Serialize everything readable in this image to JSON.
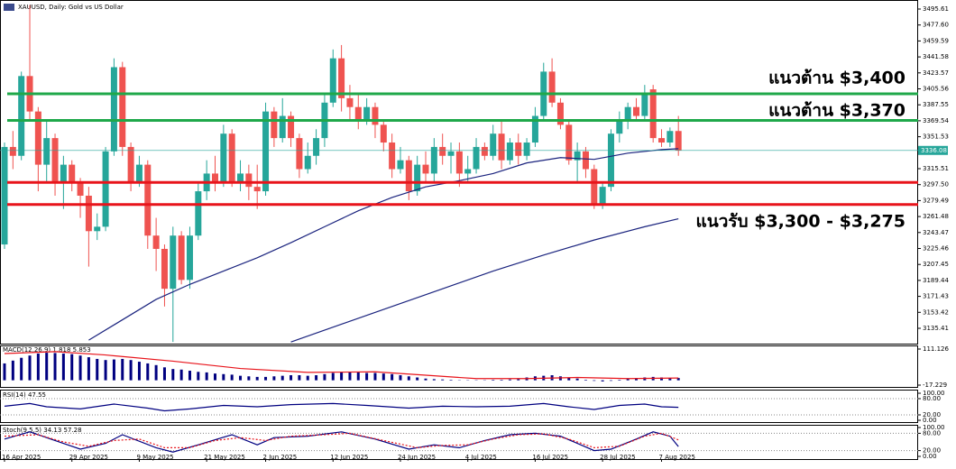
{
  "chart_data": {
    "type": "candlestick",
    "title": "XAUUSD, Daily: Gold vs US Dollar",
    "ylim": [
      3118.1,
      3505.8
    ],
    "yticks": [
      3495.61,
      {
        "value": 3477.6,
        "label": "3477.60"
      },
      3459.59,
      3441.58,
      3423.57,
      3405.56,
      3387.55,
      3369.54,
      3351.53,
      3315.51,
      {
        "value": 3297.5,
        "label": "3297.50"
      },
      3279.49,
      3261.48,
      3243.47,
      3225.46,
      3207.45,
      3189.44,
      3171.43,
      3153.42,
      3135.41
    ],
    "xticks": [
      {
        "value": 0,
        "label": "16 Apr 2025"
      },
      {
        "value": 8,
        "label": "29 Apr 2025"
      },
      {
        "value": 16,
        "label": "9 May 2025"
      },
      {
        "value": 24,
        "label": "21 May 2025"
      },
      {
        "value": 31,
        "label": "2 Jun 2025"
      },
      {
        "value": 39,
        "label": "12 Jun 2025"
      },
      {
        "value": 47,
        "label": "24 Jun 2025"
      },
      {
        "value": 55,
        "label": "4 Jul 2025"
      },
      {
        "value": 63,
        "label": "16 Jul 2025"
      },
      {
        "value": 71,
        "label": "28 Jul 2025"
      },
      {
        "value": 78,
        "label": "7 Aug 2025"
      }
    ],
    "up_color": "#26a69a",
    "down_color": "#ef5350",
    "candles": [
      [
        3230,
        3345,
        3225,
        3340
      ],
      [
        3340,
        3358,
        3315,
        3330
      ],
      [
        3330,
        3425,
        3325,
        3420
      ],
      [
        3420,
        3500,
        3370,
        3380
      ],
      [
        3380,
        3385,
        3290,
        3320
      ],
      [
        3320,
        3370,
        3300,
        3350
      ],
      [
        3350,
        3355,
        3285,
        3300
      ],
      [
        3300,
        3330,
        3270,
        3320
      ],
      [
        3320,
        3325,
        3290,
        3300
      ],
      [
        3300,
        3305,
        3260,
        3285
      ],
      [
        3285,
        3295,
        3205,
        3245
      ],
      [
        3245,
        3265,
        3235,
        3250
      ],
      [
        3250,
        3340,
        3245,
        3335
      ],
      [
        3335,
        3440,
        3330,
        3430
      ],
      [
        3430,
        3436,
        3330,
        3340
      ],
      [
        3340,
        3345,
        3290,
        3300
      ],
      [
        3300,
        3330,
        3295,
        3320
      ],
      [
        3320,
        3325,
        3225,
        3240
      ],
      [
        3240,
        3260,
        3200,
        3225
      ],
      [
        3225,
        3230,
        3160,
        3180
      ],
      [
        3180,
        3250,
        3120,
        3240
      ],
      [
        3240,
        3245,
        3185,
        3190
      ],
      [
        3190,
        3250,
        3180,
        3240
      ],
      [
        3240,
        3300,
        3235,
        3290
      ],
      [
        3290,
        3325,
        3280,
        3310
      ],
      [
        3310,
        3330,
        3290,
        3300
      ],
      [
        3300,
        3365,
        3295,
        3355
      ],
      [
        3355,
        3360,
        3295,
        3300
      ],
      [
        3300,
        3325,
        3290,
        3310
      ],
      [
        3310,
        3320,
        3280,
        3295
      ],
      [
        3295,
        3320,
        3270,
        3290
      ],
      [
        3290,
        3390,
        3285,
        3380
      ],
      [
        3380,
        3385,
        3340,
        3350
      ],
      [
        3350,
        3395,
        3345,
        3375
      ],
      [
        3375,
        3380,
        3340,
        3350
      ],
      [
        3350,
        3355,
        3305,
        3315
      ],
      [
        3315,
        3345,
        3310,
        3330
      ],
      [
        3330,
        3360,
        3320,
        3350
      ],
      [
        3350,
        3400,
        3340,
        3390
      ],
      [
        3390,
        3450,
        3385,
        3440
      ],
      [
        3440,
        3455,
        3380,
        3395
      ],
      [
        3395,
        3410,
        3370,
        3385
      ],
      [
        3385,
        3400,
        3360,
        3370
      ],
      [
        3370,
        3395,
        3365,
        3385
      ],
      [
        3385,
        3390,
        3350,
        3365
      ],
      [
        3365,
        3370,
        3335,
        3345
      ],
      [
        3345,
        3355,
        3305,
        3315
      ],
      [
        3315,
        3340,
        3310,
        3325
      ],
      [
        3325,
        3330,
        3280,
        3290
      ],
      [
        3290,
        3330,
        3285,
        3320
      ],
      [
        3320,
        3335,
        3300,
        3310
      ],
      [
        3310,
        3350,
        3300,
        3340
      ],
      [
        3340,
        3355,
        3320,
        3330
      ],
      [
        3330,
        3345,
        3310,
        3335
      ],
      [
        3335,
        3345,
        3295,
        3310
      ],
      [
        3310,
        3330,
        3300,
        3315
      ],
      [
        3315,
        3350,
        3310,
        3340
      ],
      [
        3340,
        3345,
        3325,
        3330
      ],
      [
        3330,
        3365,
        3325,
        3355
      ],
      [
        3355,
        3370,
        3315,
        3325
      ],
      [
        3325,
        3350,
        3320,
        3345
      ],
      [
        3345,
        3355,
        3320,
        3330
      ],
      [
        3330,
        3350,
        3325,
        3345
      ],
      [
        3345,
        3385,
        3340,
        3375
      ],
      [
        3375,
        3435,
        3370,
        3425
      ],
      [
        3425,
        3440,
        3385,
        3390
      ],
      [
        3390,
        3395,
        3360,
        3365
      ],
      [
        3365,
        3370,
        3320,
        3325
      ],
      [
        3325,
        3345,
        3300,
        3335
      ],
      [
        3335,
        3340,
        3305,
        3315
      ],
      [
        3315,
        3320,
        3270,
        3275
      ],
      [
        3275,
        3300,
        3270,
        3295
      ],
      [
        3295,
        3360,
        3290,
        3355
      ],
      [
        3355,
        3380,
        3345,
        3370
      ],
      [
        3370,
        3390,
        3360,
        3385
      ],
      [
        3385,
        3395,
        3370,
        3375
      ],
      [
        3375,
        3410,
        3370,
        3400
      ],
      [
        3405,
        3410,
        3345,
        3350
      ],
      [
        3350,
        3360,
        3340,
        3345
      ],
      [
        3345,
        3362,
        3340,
        3358
      ],
      [
        3358,
        3375,
        3330,
        3336.08
      ]
    ],
    "last_price": 3336.08,
    "last_color": "#26a69a",
    "ma_color": "#1a237e",
    "ma": [
      {
        "x": [
          10,
          14,
          18,
          22,
          26,
          30,
          34,
          38,
          42,
          46,
          50,
          54,
          58,
          62,
          66,
          70,
          74,
          78,
          80
        ],
        "values": [
          3122,
          3145,
          3168,
          3185,
          3200,
          3215,
          3232,
          3250,
          3268,
          3283,
          3295,
          3302,
          3310,
          3322,
          3328,
          3326,
          3333,
          3337,
          3338
        ]
      },
      {
        "x": [
          34,
          40,
          46,
          52,
          58,
          64,
          70,
          76,
          80
        ],
        "values": [
          3120,
          3140,
          3160,
          3180,
          3200,
          3218,
          3235,
          3250,
          3259
        ]
      }
    ],
    "levels": [
      {
        "value": 3400,
        "color": "#1fa84a"
      },
      {
        "value": 3370,
        "color": "#1fa84a"
      },
      {
        "value": 3300,
        "color": "#e8141b"
      },
      {
        "value": 3275,
        "color": "#e8141b"
      }
    ],
    "annotations": [
      "แนวต้าน $3,400",
      "แนวต้าน $3,370",
      "แนวรับ $3,300 - $3,275"
    ],
    "macd": {
      "label": "MACD(12,26,9) 1.818 5.853",
      "ylim": [
        -17.229,
        111.126
      ],
      "yticks": [
        111.126,
        -17.229
      ],
      "color": "#000080",
      "signal_color": "#e8141b",
      "histogram": [
        60,
        70,
        80,
        88,
        95,
        98,
        97,
        95,
        93,
        88,
        82,
        76,
        72,
        74,
        76,
        72,
        66,
        60,
        54,
        46,
        40,
        38,
        34,
        30,
        28,
        24,
        22,
        20,
        16,
        14,
        12,
        12,
        14,
        16,
        18,
        18,
        16,
        18,
        22,
        26,
        28,
        28,
        28,
        26,
        26,
        24,
        22,
        18,
        14,
        10,
        6,
        4,
        3,
        2,
        1,
        1,
        1,
        1,
        2,
        2,
        3,
        4,
        10,
        14,
        16,
        18,
        14,
        10,
        6,
        2,
        -2,
        -4,
        -2,
        2,
        5,
        8,
        10,
        12,
        10,
        8,
        8
      ],
      "signal": {
        "x": [
          0,
          6,
          12,
          20,
          28,
          36,
          44,
          50,
          56,
          62,
          68,
          74,
          80
        ],
        "values": [
          95,
          102,
          90,
          68,
          42,
          28,
          30,
          18,
          6,
          6,
          10,
          6,
          8
        ]
      }
    },
    "rsi": {
      "label": "RSI(14) 47.55",
      "ylim": [
        0,
        100
      ],
      "yticks": [
        {
          "value": 100,
          "label": "100.00"
        },
        {
          "value": 80,
          "label": "80.00"
        },
        {
          "value": 20,
          "label": "20.00"
        },
        {
          "value": 0,
          "label": "0.00"
        }
      ],
      "color": "#000080",
      "line": {
        "x": [
          0,
          3,
          5,
          9,
          13,
          17,
          19,
          22,
          26,
          30,
          34,
          39,
          43,
          48,
          52,
          56,
          60,
          64,
          67,
          70,
          73,
          76,
          78,
          80
        ],
        "values": [
          52,
          62,
          50,
          42,
          60,
          45,
          35,
          42,
          55,
          50,
          58,
          62,
          55,
          45,
          52,
          50,
          52,
          62,
          50,
          40,
          55,
          60,
          50,
          48
        ]
      }
    },
    "stoch": {
      "label": "Stoch(9,5,5) 34.13 57.28",
      "ylim": [
        0,
        100
      ],
      "yticks": [
        {
          "value": 100,
          "label": "100.00"
        },
        {
          "value": 80,
          "label": "80.00"
        },
        {
          "value": 20,
          "label": "20.00"
        },
        {
          "value": 0,
          "label": "0.00"
        }
      ],
      "color": "#000080",
      "signal_color": "#e8141b",
      "main": {
        "x": [
          0,
          3,
          6,
          9,
          12,
          14,
          18,
          20,
          23,
          27,
          30,
          32,
          36,
          40,
          44,
          48,
          51,
          54,
          57,
          60,
          63,
          66,
          70,
          72,
          75,
          77,
          79,
          80
        ],
        "values": [
          60,
          85,
          55,
          25,
          45,
          75,
          30,
          15,
          40,
          75,
          40,
          65,
          70,
          85,
          60,
          25,
          40,
          30,
          55,
          75,
          80,
          70,
          20,
          25,
          60,
          85,
          70,
          34.13
        ]
      },
      "signal": {
        "x": [
          0,
          4,
          7,
          10,
          13,
          16,
          19,
          22,
          25,
          28,
          31,
          34,
          38,
          41,
          45,
          49,
          52,
          55,
          58,
          61,
          64,
          67,
          70,
          73,
          76,
          78,
          80
        ],
        "values": [
          70,
          75,
          50,
          35,
          55,
          60,
          30,
          30,
          55,
          65,
          55,
          70,
          75,
          80,
          55,
          30,
          38,
          40,
          60,
          75,
          78,
          60,
          30,
          35,
          70,
          80,
          57.28
        ]
      }
    }
  }
}
